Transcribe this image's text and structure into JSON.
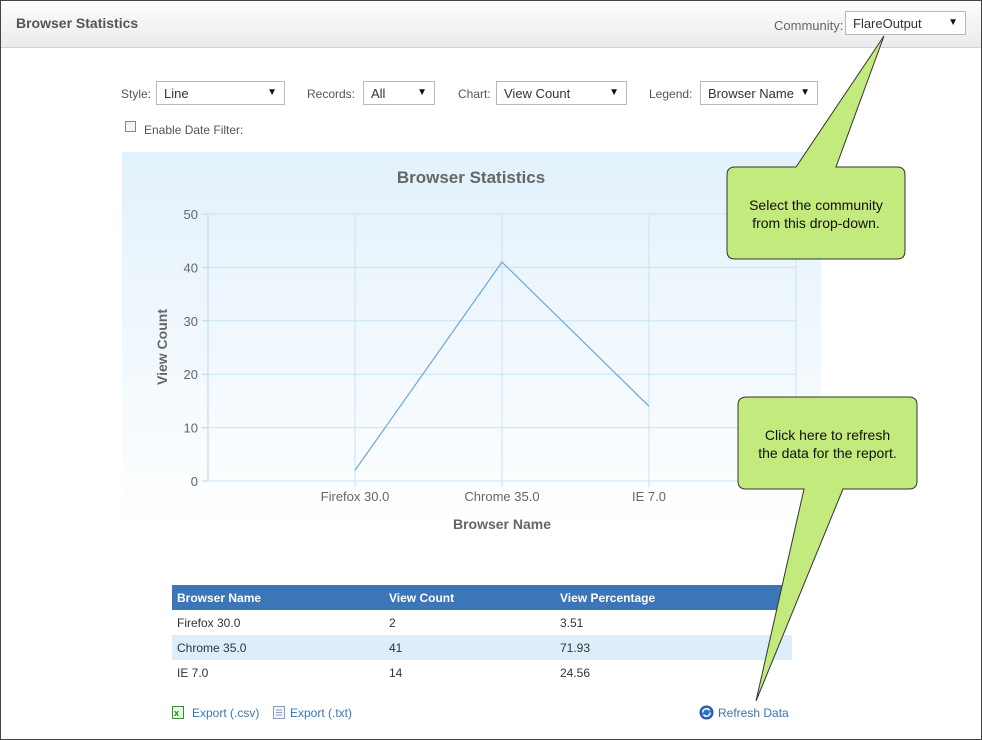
{
  "header": {
    "title": "Browser Statistics",
    "community_label": "Community:",
    "community_value": "FlareOutput"
  },
  "filters": {
    "style_label": "Style:",
    "style_value": "Line",
    "records_label": "Records:",
    "records_value": "All",
    "chart_label": "Chart:",
    "chart_value": "View Count",
    "legend_label": "Legend:",
    "legend_value": "Browser Name",
    "date_filter_label": "Enable Date Filter:"
  },
  "chart_data": {
    "type": "line",
    "title": "Browser Statistics",
    "xlabel": "Browser Name",
    "ylabel": "View Count",
    "categories": [
      "Firefox 30.0",
      "Chrome 35.0",
      "IE 7.0"
    ],
    "values": [
      2,
      41,
      14
    ],
    "ylim": [
      0,
      50
    ],
    "yticks": [
      "0",
      "10",
      "20",
      "30",
      "40",
      "50"
    ],
    "color": "#6aa7d9"
  },
  "table": {
    "headers": [
      "Browser Name",
      "View Count",
      "View Percentage"
    ],
    "rows": [
      [
        "Firefox 30.0",
        "2",
        "3.51"
      ],
      [
        "Chrome 35.0",
        "41",
        "71.93"
      ],
      [
        "IE 7.0",
        "14",
        "24.56"
      ]
    ]
  },
  "footer": {
    "export_csv": "Export (.csv)",
    "export_txt": "Export (.txt)",
    "refresh": "Refresh Data"
  },
  "callouts": {
    "community": [
      "Select the community",
      "from this drop-down."
    ],
    "refresh": [
      "Click here to refresh",
      "the data for the report."
    ]
  },
  "colors": {
    "accent": "#3c76b8",
    "callout": "#c2ea7c"
  }
}
